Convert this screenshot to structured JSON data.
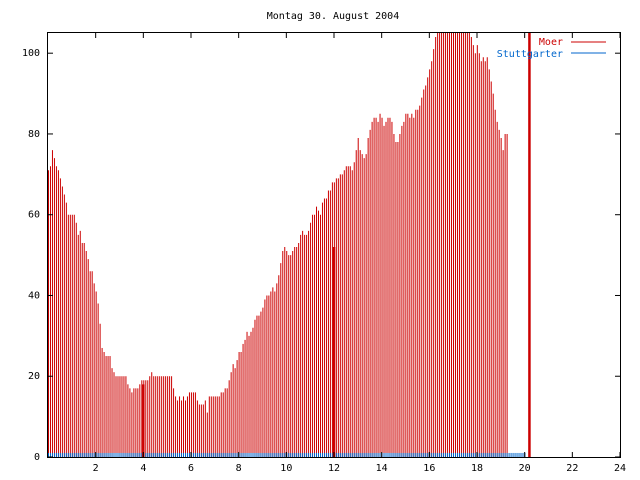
{
  "chart_data": {
    "type": "bar",
    "title": "Montag 30. August 2004",
    "xlabel": "",
    "ylabel": "",
    "xlim": [
      0,
      24
    ],
    "ylim": [
      0,
      105
    ],
    "xticks": [
      2,
      4,
      6,
      8,
      10,
      12,
      14,
      16,
      18,
      20,
      22,
      24
    ],
    "yticks": [
      0,
      20,
      40,
      60,
      80,
      100
    ],
    "grid": false,
    "legend_position": "top-right",
    "bar_step_hours": 0.0833,
    "series": [
      {
        "name": "Moer",
        "color": "#cc0000",
        "values": [
          71,
          72,
          76,
          74,
          72,
          71,
          69,
          67,
          65,
          63,
          60,
          60,
          60,
          60,
          58,
          55,
          56,
          53,
          53,
          51,
          49,
          46,
          46,
          43,
          41,
          38,
          33,
          27,
          26,
          25,
          25,
          25,
          22,
          21,
          20,
          20,
          20,
          20,
          20,
          20,
          18,
          17,
          16,
          17,
          17,
          17,
          18,
          19,
          19,
          19,
          19,
          20,
          21,
          20,
          20,
          20,
          20,
          20,
          20,
          20,
          20,
          20,
          20,
          17,
          15,
          14,
          15,
          14,
          15,
          14,
          15,
          16,
          16,
          16,
          16,
          14,
          13,
          13,
          13,
          14,
          11,
          15,
          15,
          15,
          15,
          15,
          15,
          16,
          16,
          17,
          17,
          19,
          21,
          23,
          22,
          24,
          26,
          26,
          28,
          29,
          31,
          30,
          31,
          32,
          34,
          35,
          35,
          36,
          37,
          39,
          40,
          40,
          41,
          42,
          41,
          43,
          45,
          48,
          51,
          52,
          51,
          50,
          50,
          51,
          52,
          52,
          53,
          55,
          56,
          55,
          55,
          56,
          58,
          60,
          60,
          62,
          61,
          60,
          63,
          64,
          64,
          66,
          66,
          68,
          68,
          69,
          69,
          70,
          70,
          71,
          72,
          72,
          72,
          71,
          73,
          76,
          79,
          76,
          75,
          74,
          75,
          79,
          81,
          83,
          84,
          84,
          83,
          85,
          84,
          82,
          83,
          84,
          84,
          83,
          80,
          78,
          78,
          80,
          82,
          83,
          85,
          85,
          84,
          85,
          84,
          86,
          86,
          87,
          89,
          91,
          92,
          94,
          96,
          98,
          101,
          104,
          105,
          105,
          105,
          105,
          105,
          105,
          105,
          105,
          105,
          105,
          105,
          105,
          105,
          105,
          105,
          105,
          105,
          104,
          102,
          100,
          102,
          100,
          98,
          99,
          98,
          99,
          96,
          93,
          90,
          86,
          83,
          81,
          79,
          76,
          80,
          80
        ]
      },
      {
        "name": "Stuttgarter",
        "color": "#0066cc",
        "values": [
          1,
          1,
          1,
          1,
          1,
          1,
          1,
          1,
          1,
          1,
          1,
          1,
          1,
          1,
          1,
          1,
          1,
          1,
          1,
          1,
          1,
          1,
          1,
          1,
          1,
          1,
          1,
          1,
          1,
          1,
          1,
          1,
          1,
          1,
          1,
          1,
          1,
          1,
          1,
          1,
          1,
          1,
          1,
          1,
          1,
          1,
          1,
          1,
          1,
          1,
          1,
          1,
          1,
          1,
          1,
          1,
          1,
          1,
          1,
          1,
          1,
          1,
          1,
          1,
          1,
          1,
          1,
          1,
          1,
          1,
          1,
          1,
          1,
          1,
          1,
          1,
          1,
          1,
          1,
          1,
          1,
          1,
          1,
          1,
          1,
          1,
          1,
          1,
          1,
          1,
          1,
          1,
          1,
          1,
          1,
          1,
          1,
          1,
          1,
          1,
          1,
          1,
          1,
          1,
          1,
          1,
          1,
          1,
          1,
          1,
          1,
          1,
          1,
          1,
          1,
          1,
          1,
          1,
          1,
          1,
          1,
          1,
          1,
          1,
          1,
          1,
          1,
          1,
          1,
          1,
          1,
          1,
          1,
          1,
          1,
          1,
          1,
          1,
          1,
          1,
          1,
          1,
          1,
          1,
          1,
          1,
          1,
          1,
          1,
          1,
          1,
          1,
          1,
          1,
          1,
          1,
          1,
          1,
          1,
          1,
          1,
          1,
          1,
          1,
          1,
          1,
          1,
          1,
          1,
          1,
          1,
          1,
          1,
          1,
          1,
          1,
          1,
          1,
          1,
          1,
          1,
          1,
          1,
          1,
          1,
          1,
          1,
          1,
          1,
          1,
          1,
          1,
          1,
          1,
          1,
          1,
          1,
          1,
          1,
          1,
          1,
          1,
          1,
          1,
          1,
          1,
          1,
          1,
          1,
          1,
          1,
          1,
          1,
          1,
          1,
          1,
          1,
          1,
          1,
          1,
          1,
          1,
          1,
          1,
          1,
          1,
          1,
          1,
          1,
          1,
          1,
          1,
          1,
          1,
          1,
          1,
          1,
          1,
          1,
          1,
          1
        ]
      }
    ],
    "markers": [
      {
        "x": 4.0,
        "y": 18,
        "series": "Moer"
      },
      {
        "x": 12.0,
        "y": 52,
        "series": "Moer"
      },
      {
        "x": 20.2,
        "y": 105,
        "series": "Moer"
      }
    ]
  }
}
